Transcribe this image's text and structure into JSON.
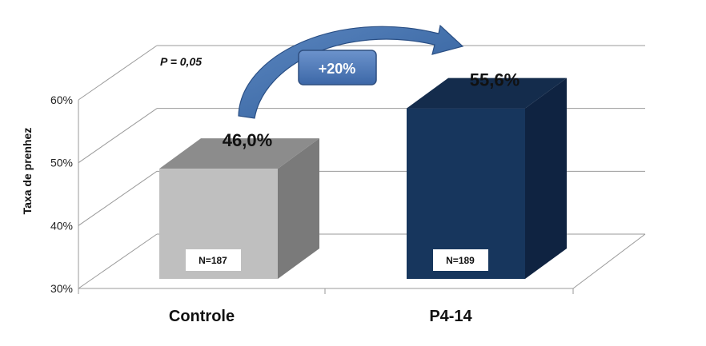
{
  "chart_data": {
    "type": "bar",
    "categories": [
      "Controle",
      "P4-14"
    ],
    "values": [
      46.0,
      55.6
    ],
    "value_labels": [
      "46,0%",
      "55,6%"
    ],
    "sample_labels": [
      "N=187",
      "N=189"
    ],
    "colors": [
      "#BFBFBF",
      "#17365D"
    ],
    "ylabel": "Taxa de prenhez",
    "ylim": [
      30,
      60
    ],
    "yticks": [
      30,
      40,
      50,
      60
    ],
    "ytick_labels": [
      "30%",
      "40%",
      "50%",
      "60%"
    ],
    "grid": true,
    "annotation": "P = 0,05",
    "arrow_label": "+20%",
    "style": "3d-bars"
  }
}
